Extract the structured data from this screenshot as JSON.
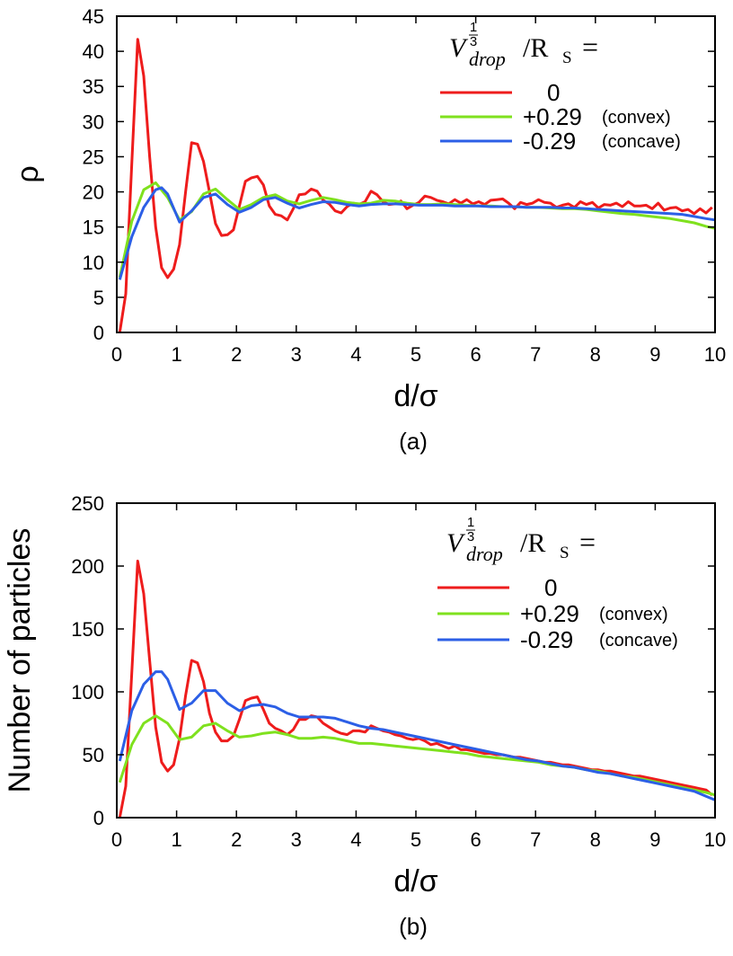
{
  "legend_title": {
    "var": "V",
    "exp": "1",
    "exp_den": "3",
    "sub": "drop",
    "rest": "/R",
    "rest_sub": "S",
    "eq": "="
  },
  "chart_data": [
    {
      "type": "line",
      "panel": "(a)",
      "xlabel": "d/σ",
      "ylabel": "ρ",
      "xlim": [
        0,
        10
      ],
      "ylim": [
        0,
        45
      ],
      "xticks": [
        0,
        1,
        2,
        3,
        4,
        5,
        6,
        7,
        8,
        9,
        10
      ],
      "yticks": [
        0,
        5,
        10,
        15,
        20,
        25,
        30,
        35,
        40,
        45
      ],
      "legend_position": "top-right",
      "series": [
        {
          "name": "0",
          "note": "",
          "color": "#ee1c1c",
          "x": [
            0.05,
            0.15,
            0.25,
            0.35,
            0.45,
            0.55,
            0.65,
            0.75,
            0.85,
            0.95,
            1.05,
            1.15,
            1.25,
            1.35,
            1.45,
            1.55,
            1.65,
            1.75,
            1.85,
            1.95,
            2.05,
            2.15,
            2.25,
            2.35,
            2.45,
            2.55,
            2.65,
            2.75,
            2.85,
            2.95,
            3.05,
            3.15,
            3.25,
            3.35,
            3.45,
            3.55,
            3.65,
            3.75,
            3.85,
            3.95,
            4.05,
            4.15,
            4.25,
            4.35,
            4.45,
            4.55,
            4.65,
            4.75,
            4.85,
            4.95,
            5.05,
            5.15,
            5.25,
            5.35,
            5.45,
            5.55,
            5.65,
            5.75,
            5.85,
            5.95,
            6.05,
            6.15,
            6.25,
            6.35,
            6.45,
            6.55,
            6.65,
            6.75,
            6.85,
            6.95,
            7.05,
            7.15,
            7.25,
            7.35,
            7.45,
            7.55,
            7.65,
            7.75,
            7.85,
            7.95,
            8.05,
            8.15,
            8.25,
            8.35,
            8.45,
            8.55,
            8.65,
            8.75,
            8.85,
            8.95,
            9.05,
            9.15,
            9.25,
            9.35,
            9.45,
            9.55,
            9.65,
            9.75,
            9.85,
            9.95
          ],
          "y": [
            0,
            5.5,
            24,
            41.7,
            36.5,
            25,
            15,
            9.2,
            7.8,
            9,
            12.5,
            20,
            27,
            26.8,
            24.3,
            20,
            15.5,
            13.8,
            13.9,
            14.6,
            18,
            21.5,
            22,
            22.2,
            21,
            18,
            16.8,
            16.6,
            16,
            17.6,
            19.6,
            19.7,
            20.4,
            20.1,
            18.8,
            18.3,
            17.3,
            17,
            17.9,
            18.4,
            18.2,
            18.6,
            20.1,
            19.6,
            18.6,
            18.2,
            18.3,
            18.7,
            17.6,
            18.1,
            18.5,
            19.4,
            19.2,
            18.8,
            18.6,
            18.3,
            18.9,
            18.4,
            18.9,
            18.3,
            18.6,
            18.2,
            18.8,
            18.9,
            19,
            18.4,
            17.6,
            18.5,
            18.2,
            18.4,
            18.9,
            18.5,
            18.4,
            17.8,
            18.1,
            18.3,
            17.8,
            18.6,
            18.2,
            18.5,
            17.7,
            18.2,
            18.1,
            18.4,
            17.9,
            18.6,
            18,
            18,
            18.1,
            17.6,
            18.4,
            17.4,
            17.7,
            17.8,
            17.3,
            17.5,
            16.9,
            17.6,
            17,
            17.8
          ]
        },
        {
          "name": "+0.29",
          "note": "(convex)",
          "color": "#7fe11e",
          "x": [
            0.05,
            0.25,
            0.45,
            0.65,
            0.85,
            1.05,
            1.25,
            1.45,
            1.65,
            1.85,
            2.05,
            2.25,
            2.45,
            2.65,
            2.85,
            3.05,
            3.25,
            3.45,
            3.65,
            3.85,
            4.05,
            4.25,
            4.45,
            4.65,
            4.85,
            5.05,
            5.25,
            5.45,
            5.65,
            5.85,
            6.05,
            6.25,
            6.45,
            6.65,
            6.85,
            7.05,
            7.25,
            7.45,
            7.65,
            7.85,
            8.05,
            8.25,
            8.45,
            8.65,
            8.85,
            9.05,
            9.25,
            9.45,
            9.65,
            9.85,
            10.0
          ],
          "y": [
            7.8,
            15.8,
            20.3,
            21.3,
            19.2,
            16,
            17.2,
            19.7,
            20.4,
            18.9,
            17.5,
            18.2,
            19.2,
            19.6,
            18.7,
            18.3,
            18.8,
            19.2,
            18.9,
            18.5,
            18.3,
            18.4,
            18.8,
            18.7,
            18.4,
            18.2,
            18.2,
            18.3,
            18.2,
            18.1,
            18,
            18,
            17.9,
            17.9,
            17.8,
            17.8,
            17.7,
            17.6,
            17.6,
            17.5,
            17.3,
            17.1,
            16.9,
            16.8,
            16.6,
            16.4,
            16.2,
            15.9,
            15.6,
            15.1,
            14.8
          ]
        },
        {
          "name": "-0.29",
          "note": "(concave)",
          "color": "#2c5fe6",
          "x": [
            0.05,
            0.25,
            0.45,
            0.65,
            0.75,
            0.85,
            1.05,
            1.25,
            1.45,
            1.65,
            1.85,
            2.05,
            2.25,
            2.45,
            2.65,
            2.85,
            3.05,
            3.25,
            3.45,
            3.65,
            3.85,
            4.05,
            4.25,
            4.45,
            4.65,
            4.85,
            5.05,
            5.25,
            5.45,
            5.65,
            5.85,
            6.05,
            6.25,
            6.45,
            6.65,
            6.85,
            7.05,
            7.25,
            7.45,
            7.65,
            7.85,
            8.05,
            8.25,
            8.45,
            8.65,
            8.85,
            9.05,
            9.25,
            9.45,
            9.65,
            9.85,
            10.0
          ],
          "y": [
            7.5,
            13.6,
            17.8,
            20.3,
            20.6,
            19.7,
            15.7,
            17.3,
            19.2,
            19.7,
            18.2,
            17.1,
            17.8,
            18.9,
            19.2,
            18.4,
            17.7,
            18.2,
            18.6,
            18.5,
            18.2,
            18,
            18.2,
            18.3,
            18.3,
            18.2,
            18.1,
            18.1,
            18.1,
            18,
            18,
            18,
            17.9,
            17.9,
            17.9,
            17.8,
            17.8,
            17.8,
            17.7,
            17.7,
            17.6,
            17.5,
            17.4,
            17.3,
            17.2,
            17.1,
            17,
            16.9,
            16.8,
            16.5,
            16.2,
            16
          ]
        }
      ]
    },
    {
      "type": "line",
      "panel": "(b)",
      "xlabel": "d/σ",
      "ylabel": "Number of particles",
      "xlim": [
        0,
        10
      ],
      "ylim": [
        0,
        250
      ],
      "xticks": [
        0,
        1,
        2,
        3,
        4,
        5,
        6,
        7,
        8,
        9,
        10
      ],
      "yticks": [
        0,
        50,
        100,
        150,
        200,
        250
      ],
      "legend_position": "top-right",
      "series": [
        {
          "name": "0",
          "note": "",
          "color": "#ee1c1c",
          "x": [
            0.05,
            0.15,
            0.25,
            0.35,
            0.45,
            0.55,
            0.65,
            0.75,
            0.85,
            0.95,
            1.05,
            1.15,
            1.25,
            1.35,
            1.45,
            1.55,
            1.65,
            1.75,
            1.85,
            1.95,
            2.05,
            2.15,
            2.25,
            2.35,
            2.45,
            2.55,
            2.65,
            2.75,
            2.85,
            2.95,
            3.05,
            3.15,
            3.25,
            3.35,
            3.45,
            3.55,
            3.65,
            3.75,
            3.85,
            3.95,
            4.05,
            4.15,
            4.25,
            4.35,
            4.45,
            4.55,
            4.65,
            4.75,
            4.85,
            4.95,
            5.05,
            5.15,
            5.25,
            5.35,
            5.45,
            5.55,
            5.65,
            5.75,
            5.85,
            5.95,
            6.05,
            6.15,
            6.25,
            6.35,
            6.45,
            6.55,
            6.65,
            6.75,
            6.85,
            6.95,
            7.05,
            7.15,
            7.25,
            7.35,
            7.45,
            7.55,
            7.65,
            7.75,
            7.85,
            7.95,
            8.05,
            8.15,
            8.25,
            8.35,
            8.45,
            8.55,
            8.65,
            8.75,
            8.85,
            8.95,
            9.05,
            9.15,
            9.25,
            9.35,
            9.45,
            9.55,
            9.65,
            9.75,
            9.85,
            9.95
          ],
          "y": [
            0,
            25,
            115,
            204,
            178,
            125,
            72,
            44,
            37,
            42,
            63,
            97,
            125,
            123,
            108,
            83,
            68,
            61,
            61,
            65,
            78,
            93,
            95,
            96,
            86,
            75,
            71,
            69,
            66,
            70,
            78,
            78,
            81,
            80,
            75,
            72,
            69,
            67,
            66,
            69,
            69,
            68,
            73,
            71,
            69,
            68,
            66,
            65,
            63,
            62,
            63,
            61,
            58,
            59,
            57,
            55,
            57,
            54,
            54,
            53,
            52,
            51,
            51,
            50,
            50,
            49,
            48,
            48,
            47,
            46,
            45,
            44,
            44,
            43,
            42,
            42,
            41,
            40,
            39,
            38,
            38,
            37,
            37,
            36,
            35,
            34,
            33,
            33,
            32,
            31,
            30,
            29,
            28,
            27,
            26,
            25,
            24,
            23,
            22,
            18
          ]
        },
        {
          "name": "+0.29",
          "note": "(convex)",
          "color": "#7fe11e",
          "x": [
            0.05,
            0.25,
            0.45,
            0.65,
            0.85,
            1.05,
            1.25,
            1.45,
            1.65,
            1.85,
            2.05,
            2.25,
            2.45,
            2.65,
            2.85,
            3.05,
            3.25,
            3.45,
            3.65,
            3.85,
            4.05,
            4.25,
            4.45,
            4.65,
            4.85,
            5.05,
            5.25,
            5.45,
            5.65,
            5.85,
            6.05,
            6.25,
            6.45,
            6.65,
            6.85,
            7.05,
            7.25,
            7.45,
            7.65,
            7.85,
            8.05,
            8.25,
            8.45,
            8.65,
            8.85,
            9.05,
            9.25,
            9.45,
            9.65,
            9.85,
            10.0
          ],
          "y": [
            28,
            58,
            75,
            81,
            75,
            62,
            64,
            73,
            75,
            69,
            64,
            65,
            67,
            68,
            66,
            63,
            63,
            64,
            63,
            61,
            59,
            59,
            58,
            57,
            56,
            55,
            54,
            53,
            52,
            51,
            49,
            48,
            47,
            46,
            45,
            44,
            42,
            41,
            40,
            38,
            37,
            35,
            33,
            32,
            30,
            28,
            26,
            24,
            22,
            20,
            18
          ]
        },
        {
          "name": "-0.29",
          "note": "(concave)",
          "color": "#2c5fe6",
          "x": [
            0.05,
            0.25,
            0.45,
            0.65,
            0.75,
            0.85,
            1.05,
            1.25,
            1.45,
            1.65,
            1.85,
            2.05,
            2.25,
            2.45,
            2.65,
            2.85,
            3.05,
            3.25,
            3.45,
            3.65,
            3.85,
            4.05,
            4.25,
            4.45,
            4.65,
            4.85,
            5.05,
            5.25,
            5.45,
            5.65,
            5.85,
            6.05,
            6.25,
            6.45,
            6.65,
            6.85,
            7.05,
            7.25,
            7.45,
            7.65,
            7.85,
            8.05,
            8.25,
            8.45,
            8.65,
            8.85,
            9.05,
            9.25,
            9.45,
            9.65,
            9.85,
            10.0
          ],
          "y": [
            45,
            85,
            106,
            116,
            116,
            110,
            86,
            91,
            101,
            101,
            91,
            85,
            89,
            90,
            88,
            83,
            80,
            80,
            80,
            79,
            76,
            73,
            71,
            70,
            68,
            66,
            64,
            62,
            60,
            58,
            56,
            54,
            52,
            50,
            48,
            46,
            45,
            43,
            41,
            40,
            38,
            36,
            35,
            33,
            31,
            29,
            27,
            25,
            23,
            21,
            17,
            14
          ]
        }
      ]
    }
  ]
}
